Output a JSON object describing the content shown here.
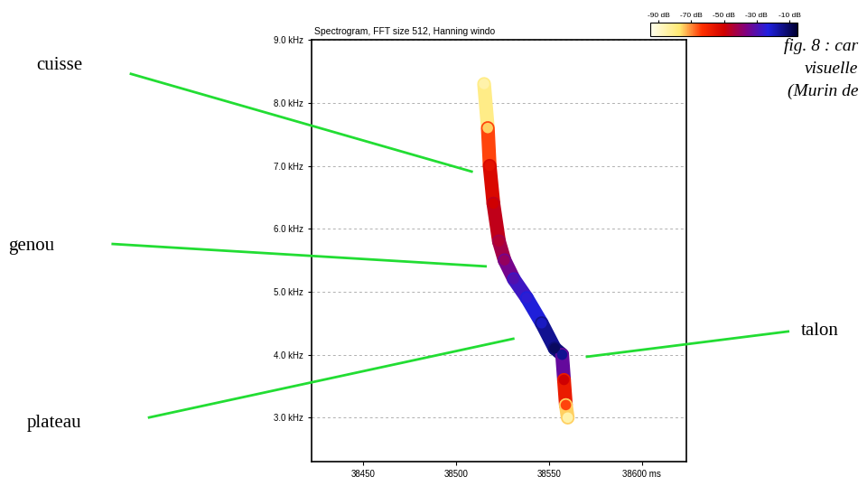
{
  "chart_data": {
    "type": "spectrogram",
    "title": "Spectrogram, FFT size 512, Hanning windo",
    "x": [
      38515,
      38517,
      38518,
      38520,
      38523,
      38526,
      38531,
      38538,
      38546,
      38553,
      38557,
      38558,
      38559,
      38560
    ],
    "values": [
      8.3,
      7.6,
      7.0,
      6.4,
      5.8,
      5.5,
      5.2,
      4.9,
      4.5,
      4.1,
      4.0,
      3.6,
      3.2,
      3.0
    ],
    "levels": [
      -85,
      -75,
      -55,
      -50,
      -45,
      -40,
      -30,
      -25,
      -20,
      -10,
      -15,
      -50,
      -65,
      -85
    ],
    "xlim": [
      38422,
      38624
    ],
    "xticks": [
      38450,
      38500,
      38550,
      {
        "value": 38600,
        "label": "38600 ms"
      }
    ],
    "ylim": [
      2.3,
      9.0
    ],
    "yticks": [
      {
        "value": 3,
        "label": "3.0 kHz"
      },
      {
        "value": 4,
        "label": "4.0 kHz"
      },
      {
        "value": 5,
        "label": "5.0 kHz"
      },
      {
        "value": 6,
        "label": "6.0 kHz"
      },
      {
        "value": 7,
        "label": "7.0 kHz"
      },
      {
        "value": 8,
        "label": "8.0 kHz"
      },
      {
        "value": 9,
        "label": "9.0 kHz"
      }
    ],
    "grid": true,
    "colorbar": {
      "range": [
        -95,
        -5
      ],
      "ticks": [
        {
          "value": -90,
          "label": "-90 dB"
        },
        {
          "value": -70,
          "label": "-70 dB"
        },
        {
          "value": -50,
          "label": "-50 dB"
        },
        {
          "value": -30,
          "label": "-30 dB"
        },
        {
          "value": -10,
          "label": "-10 dB"
        }
      ]
    },
    "annotations": [
      "cuisse",
      "genou",
      "plateau",
      "talon"
    ]
  },
  "caption": [
    "fig. 8 : car",
    "visuelle",
    "(Murin de"
  ]
}
